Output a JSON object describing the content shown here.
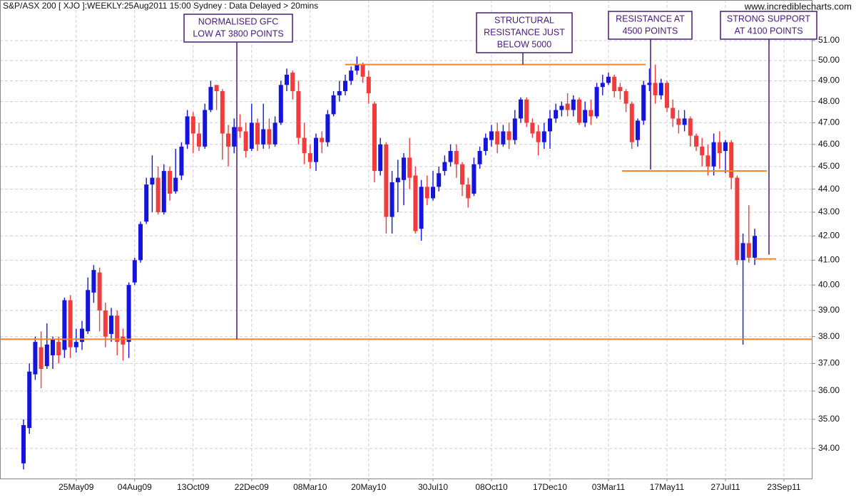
{
  "chart_data": {
    "type": "candlestick",
    "title": "S&P/ASX 200 [ XJO ]:WEEKLY:25Aug2011 15:00 Sydney : Data Delayed > 20mins",
    "source": "www.incrediblecharts.com",
    "categories": [
      null,
      null,
      null,
      null,
      null,
      null,
      null,
      null,
      null,
      "25May09",
      null,
      null,
      null,
      null,
      null,
      null,
      null,
      null,
      null,
      "04Aug09",
      null,
      null,
      null,
      null,
      null,
      null,
      null,
      null,
      null,
      "13Oct09",
      null,
      null,
      null,
      null,
      null,
      null,
      null,
      null,
      null,
      "22Dec09",
      null,
      null,
      null,
      null,
      null,
      null,
      null,
      null,
      null,
      "08Mar10",
      null,
      null,
      null,
      null,
      null,
      null,
      null,
      null,
      null,
      "20May10",
      null,
      null,
      null,
      null,
      null,
      null,
      null,
      null,
      null,
      null,
      "30Jul10",
      null,
      null,
      null,
      null,
      null,
      null,
      null,
      null,
      null,
      "08Oct10",
      null,
      null,
      null,
      null,
      null,
      null,
      null,
      null,
      null,
      "17Dec10",
      null,
      null,
      null,
      null,
      null,
      null,
      null,
      null,
      null,
      "03Mar11",
      null,
      null,
      null,
      null,
      null,
      null,
      null,
      null,
      null,
      "17May11",
      null,
      null,
      null,
      null,
      null,
      null,
      null,
      null,
      null,
      "27Jul11",
      null,
      null,
      null,
      null,
      null,
      null,
      null,
      null,
      null,
      "23Sep11"
    ],
    "open": [
      33.5,
      34.7,
      36.6,
      37.6,
      36.9,
      37.3,
      37.8,
      37.5,
      39.4,
      37.6,
      37.8,
      38.2,
      39.7,
      40.5,
      39.0,
      38.1,
      38.8,
      38.0,
      37.8,
      40.1,
      41.0,
      42.6,
      44.2,
      44.5,
      43.0,
      44.8,
      43.9,
      44.6,
      46.0,
      47.3,
      46.5,
      45.9,
      47.6,
      48.8,
      48.5,
      46.5,
      45.9,
      46.8,
      46.6,
      45.8,
      47.0,
      46.0,
      46.7,
      46.0,
      47.0,
      48.8,
      49.4,
      48.5,
      46.3,
      45.6,
      45.2,
      46.3,
      46.1,
      47.4,
      48.3,
      48.5,
      49.0,
      49.5,
      49.8,
      49.2,
      47.9,
      44.8,
      46.0,
      42.8,
      44.3,
      44.4,
      45.4,
      44.6,
      42.3,
      44.1,
      43.6,
      44.1,
      44.8,
      45.2,
      45.7,
      45.1,
      44.2,
      43.8,
      45.1,
      45.7,
      46.2,
      46.6,
      46.0,
      46.6,
      46.2,
      47.2,
      48.1,
      47.0,
      46.6,
      46.1,
      46.6,
      47.2,
      47.6,
      47.9,
      47.6,
      48.1,
      47.0,
      47.6,
      47.3,
      48.7,
      48.9,
      49.2,
      48.7,
      48.5,
      47.9,
      46.2,
      47.1,
      48.8,
      48.9,
      48.3,
      48.9,
      47.7,
      47.2,
      46.9,
      47.2,
      46.4,
      45.9,
      45.5,
      45.0,
      46.1,
      45.7,
      46.1,
      44.5,
      41.0,
      41.7,
      41.1,
      null,
      null,
      null,
      null,
      null
    ],
    "high": [
      35.0,
      37.0,
      38.0,
      38.2,
      38.5,
      38.0,
      38.0,
      39.5,
      39.6,
      38.3,
      38.6,
      40.3,
      40.8,
      40.7,
      39.3,
      39.1,
      39.0,
      38.3,
      40.1,
      41.1,
      42.6,
      44.5,
      45.5,
      45.0,
      45.1,
      45.0,
      45.8,
      46.1,
      47.6,
      47.5,
      47.0,
      47.9,
      49.0,
      48.8,
      48.6,
      46.9,
      47.2,
      47.4,
      47.0,
      47.9,
      47.2,
      47.9,
      47.2,
      47.3,
      49.0,
      49.6,
      49.5,
      49.0,
      47.0,
      46.0,
      46.5,
      46.6,
      47.6,
      48.5,
      49.0,
      49.3,
      49.7,
      50.2,
      49.9,
      49.5,
      48.0,
      46.3,
      46.1,
      44.8,
      45.3,
      45.6,
      46.3,
      45.0,
      44.4,
      44.6,
      44.8,
      45.0,
      45.5,
      46.0,
      46.0,
      45.2,
      44.5,
      45.4,
      45.9,
      46.5,
      46.9,
      47.0,
      46.9,
      47.0,
      47.6,
      48.2,
      48.2,
      47.2,
      46.9,
      47.0,
      47.6,
      47.9,
      48.0,
      48.4,
      48.3,
      48.2,
      48.0,
      48.1,
      48.9,
      49.3,
      49.4,
      49.3,
      48.9,
      48.6,
      48.0,
      47.2,
      49.0,
      49.6,
      49.8,
      49.1,
      49.0,
      48.1,
      47.6,
      47.6,
      47.3,
      46.5,
      46.3,
      46.0,
      46.5,
      46.6,
      46.2,
      46.2,
      44.6,
      42.1,
      43.3,
      42.3,
      null,
      null,
      null,
      null,
      null
    ],
    "low": [
      33.3,
      34.5,
      36.4,
      36.1,
      36.8,
      36.8,
      37.0,
      37.2,
      37.2,
      37.4,
      37.5,
      38.1,
      39.3,
      38.2,
      37.6,
      37.8,
      37.3,
      37.1,
      37.2,
      40.0,
      40.9,
      42.5,
      43.0,
      42.9,
      42.9,
      43.5,
      43.8,
      44.4,
      45.8,
      45.6,
      45.7,
      45.8,
      47.5,
      47.6,
      45.3,
      45.0,
      45.6,
      46.3,
      45.4,
      45.7,
      45.7,
      45.8,
      45.8,
      45.9,
      46.9,
      48.5,
      48.1,
      46.0,
      45.1,
      44.9,
      44.8,
      45.6,
      45.9,
      47.3,
      48.0,
      48.3,
      48.8,
      49.3,
      48.9,
      47.9,
      44.3,
      44.6,
      42.1,
      42.1,
      43.0,
      43.3,
      44.0,
      42.1,
      41.8,
      43.3,
      43.5,
      43.9,
      44.6,
      45.0,
      44.5,
      43.7,
      43.2,
      43.7,
      44.9,
      45.5,
      45.9,
      45.6,
      45.9,
      45.8,
      46.0,
      47.0,
      46.8,
      46.3,
      45.5,
      45.8,
      45.8,
      47.0,
      47.3,
      47.3,
      47.3,
      46.9,
      46.8,
      46.9,
      47.2,
      48.3,
      48.8,
      48.2,
      48.1,
      47.5,
      45.8,
      45.9,
      46.9,
      48.5,
      47.9,
      48.1,
      47.5,
      46.8,
      46.5,
      46.6,
      45.9,
      45.7,
      45.0,
      44.6,
      44.6,
      44.9,
      44.7,
      44.0,
      40.8,
      37.7,
      40.9,
      40.8,
      null,
      null,
      null,
      null,
      null
    ],
    "close": [
      34.8,
      36.7,
      37.8,
      36.8,
      37.7,
      37.9,
      37.3,
      39.4,
      37.6,
      37.8,
      38.3,
      39.8,
      40.6,
      39.0,
      38.0,
      38.8,
      37.8,
      37.7,
      40.0,
      41.0,
      42.5,
      44.2,
      44.5,
      43.0,
      44.8,
      43.8,
      44.5,
      45.9,
      47.3,
      46.5,
      45.9,
      47.6,
      48.7,
      48.5,
      46.5,
      45.9,
      46.8,
      46.6,
      45.7,
      47.0,
      46.0,
      46.7,
      46.0,
      47.0,
      48.8,
      49.3,
      48.5,
      46.3,
      45.6,
      45.2,
      46.3,
      46.1,
      47.4,
      48.3,
      48.5,
      49.0,
      49.5,
      49.8,
      49.2,
      48.4,
      44.8,
      46.0,
      42.8,
      44.3,
      44.5,
      45.4,
      44.5,
      42.2,
      44.1,
      43.6,
      44.1,
      44.7,
      45.2,
      45.7,
      45.1,
      44.2,
      43.6,
      45.1,
      45.7,
      46.3,
      46.6,
      46.0,
      46.6,
      46.2,
      47.2,
      48.1,
      47.0,
      46.5,
      46.1,
      46.6,
      47.2,
      47.6,
      47.8,
      47.6,
      48.1,
      47.0,
      47.6,
      47.3,
      48.7,
      48.9,
      49.2,
      48.5,
      48.5,
      47.9,
      46.1,
      47.1,
      48.8,
      48.9,
      48.3,
      48.9,
      47.7,
      47.2,
      46.9,
      47.2,
      46.4,
      45.9,
      45.5,
      45.0,
      46.1,
      45.6,
      46.1,
      44.5,
      41.0,
      41.7,
      41.1,
      42.0,
      null,
      null,
      null,
      null,
      null
    ],
    "up_color": "#1414dc",
    "down_color": "#f03c3c",
    "level_color": "#f08428",
    "annotation_color": "#4a1a78",
    "ylim": [
      33.0,
      53.1
    ],
    "log_scale": true,
    "grid": true,
    "yticks": [
      {
        "value": 34,
        "label": "34.00"
      },
      {
        "value": 35,
        "label": "35.00"
      },
      {
        "value": 36,
        "label": "36.00"
      },
      {
        "value": 37,
        "label": "37.00"
      },
      {
        "value": 38,
        "label": "38.00"
      },
      {
        "value": 39,
        "label": "39.00"
      },
      {
        "value": 40,
        "label": "40.00"
      },
      {
        "value": 41,
        "label": "41.00"
      },
      {
        "value": 42,
        "label": "42.00"
      },
      {
        "value": 43,
        "label": "43.00"
      },
      {
        "value": 44,
        "label": "44.00"
      },
      {
        "value": 45,
        "label": "45.00"
      },
      {
        "value": 46,
        "label": "46.00"
      },
      {
        "value": 47,
        "label": "47.00"
      },
      {
        "value": 48,
        "label": "48.00"
      },
      {
        "value": 49,
        "label": "49.00"
      },
      {
        "value": 50,
        "label": "50.00"
      },
      {
        "value": 51,
        "label": "51.00"
      }
    ],
    "levels": [
      37.9,
      49.8,
      44.8,
      41.05
    ],
    "annotations": [
      {
        "text": [
          "NORMALISED GFC",
          "LOW AT 3800 POINTS"
        ]
      },
      {
        "text": [
          "STRUCTURAL",
          "RESISTANCE JUST",
          "BELOW 5000"
        ]
      },
      {
        "text": [
          "RESISTANCE AT",
          "4500 POINTS"
        ]
      },
      {
        "text": [
          "STRONG SUPPORT",
          "AT 4100 POINTS"
        ]
      }
    ]
  }
}
